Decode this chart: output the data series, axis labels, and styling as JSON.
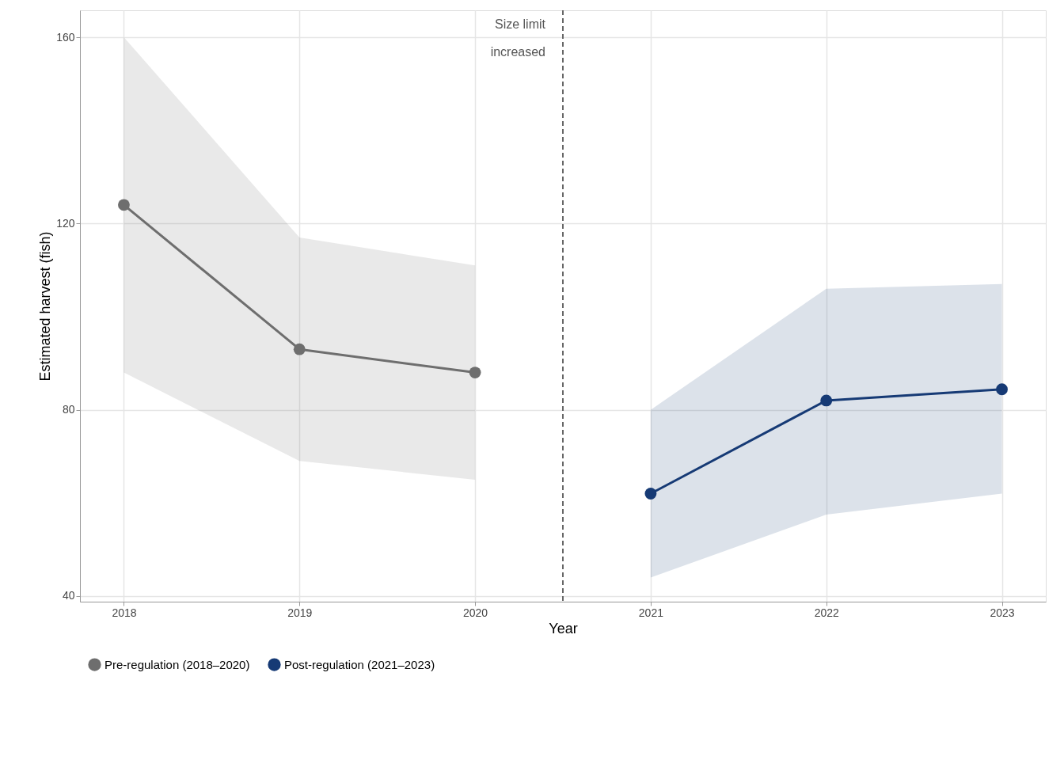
{
  "chart_data": {
    "type": "line",
    "xlabel": "Year",
    "ylabel": "Estimated harvest (fish)",
    "xlim": [
      2017.75,
      2023.25
    ],
    "xticks": [
      2018,
      2019,
      2020,
      2021,
      2022,
      2023
    ],
    "ylim": [
      38.8,
      165.8
    ],
    "yticks": [
      40,
      80,
      120,
      160
    ],
    "series": [
      {
        "name": "Pre-regulation (2018–2020)",
        "color": "#6e6e6e",
        "x": [
          2018,
          2019,
          2020
        ],
        "values": [
          124,
          93,
          88
        ],
        "lower": [
          88,
          69,
          65
        ],
        "upper": [
          160,
          117,
          111
        ]
      },
      {
        "name": "Post-regulation (2021–2023)",
        "color": "#163a75",
        "x": [
          2021,
          2022,
          2023
        ],
        "values": [
          62,
          82,
          84.4
        ],
        "lower": [
          44,
          57.5,
          62
        ],
        "upper": [
          80,
          106,
          107
        ]
      }
    ],
    "ref_lines": [
      {
        "axis": "x",
        "value": 2020.5,
        "label": "Size limit\nincreased",
        "color": "#666666",
        "line_style": "dashed"
      }
    ],
    "grid": true,
    "legend": "bottom",
    "marker": "circle",
    "line_style": "solid"
  }
}
